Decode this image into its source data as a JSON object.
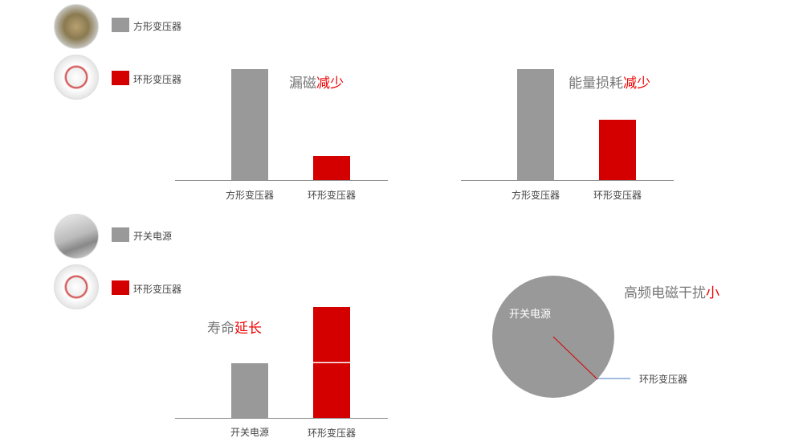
{
  "colors": {
    "gray": "#999999",
    "red": "#d40000",
    "highlight": "#ee0000"
  },
  "legends": [
    {
      "items": [
        {
          "label": "方形变压器",
          "color": "#999999",
          "icon": "square-transformer-photo"
        },
        {
          "label": "环形变压器",
          "color": "#d40000",
          "icon": "toroidal-transformer-photo"
        }
      ]
    },
    {
      "items": [
        {
          "label": "开关电源",
          "color": "#999999",
          "icon": "switching-power-supply-photo"
        },
        {
          "label": "环形变压器",
          "color": "#d40000",
          "icon": "toroidal-transformer-photo"
        }
      ]
    }
  ],
  "chart_data": [
    {
      "type": "bar",
      "title": "漏磁",
      "title_highlight": "减少",
      "categories": [
        "方形变压器",
        "环形变压器"
      ],
      "values": [
        100,
        22
      ],
      "colors": [
        "#999999",
        "#d40000"
      ]
    },
    {
      "type": "bar",
      "title": "能量损耗",
      "title_highlight": "减少",
      "categories": [
        "方形变压器",
        "环形变压器"
      ],
      "values": [
        100,
        54
      ],
      "colors": [
        "#999999",
        "#d40000"
      ]
    },
    {
      "type": "bar",
      "title": "寿命",
      "title_highlight": "延长",
      "categories": [
        "开关电源",
        "环形变压器"
      ],
      "values": [
        49,
        100
      ],
      "segments": [
        [
          49
        ],
        [
          50,
          50
        ]
      ],
      "colors": [
        "#999999",
        "#d40000"
      ]
    },
    {
      "type": "pie",
      "title": "高频电磁干扰",
      "title_highlight": "小",
      "labels": [
        "开关电源",
        "环形变压器"
      ],
      "values": [
        99.9,
        0.1
      ],
      "colors": [
        "#999999",
        "#d40000"
      ]
    }
  ]
}
